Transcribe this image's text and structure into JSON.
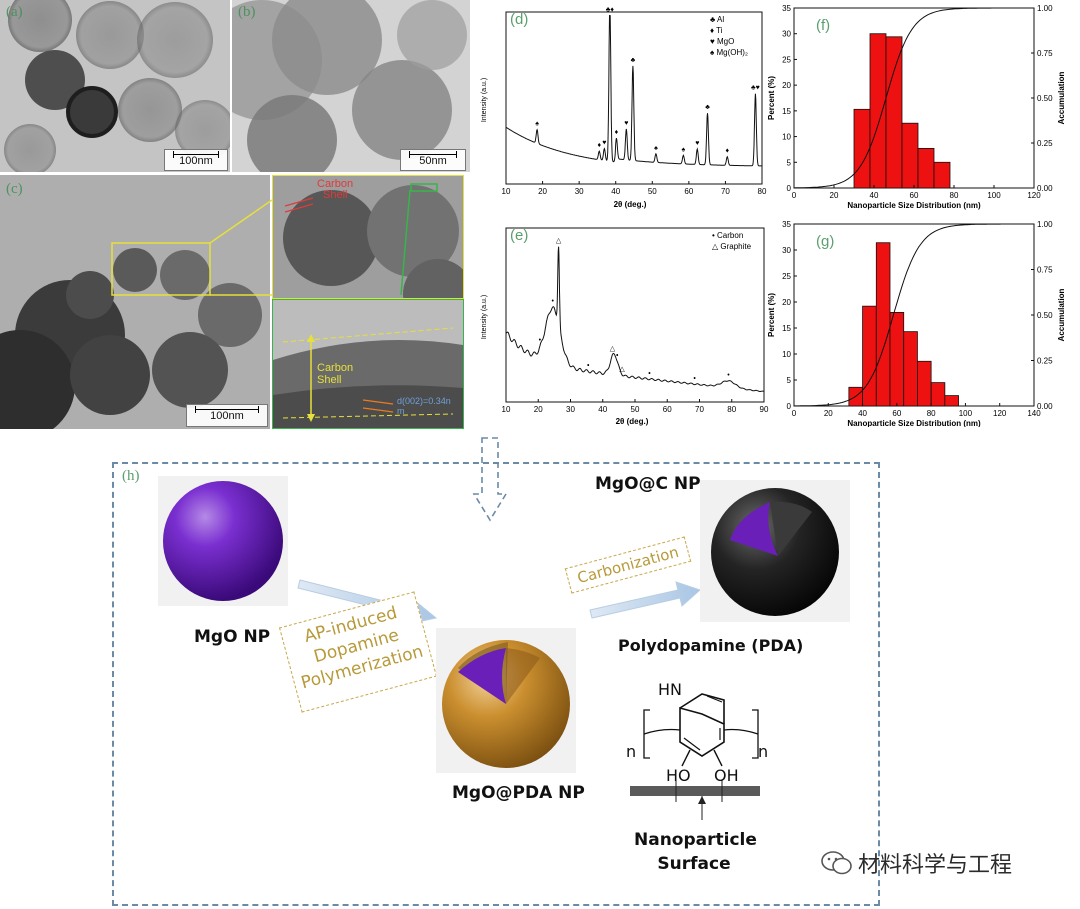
{
  "panels": {
    "a": {
      "label": "(a)",
      "scale": "100nm"
    },
    "b": {
      "label": "(b)",
      "scale": "50nm"
    },
    "c": {
      "label": "(c)",
      "scale": "100nm",
      "inset_text1": "Carbon",
      "inset_text2": "Shell",
      "carbon_label": "Carbon",
      "carbon_label2": "Shell",
      "dspacing": "d(002)=0.34n",
      "dspacing_unit": "m"
    },
    "d": {
      "label": "(d)"
    },
    "e": {
      "label": "(e)"
    },
    "f": {
      "label": "(f)"
    },
    "g": {
      "label": "(g)"
    },
    "h": {
      "label": "(h)"
    }
  },
  "chart_data": [
    {
      "id": "d",
      "type": "line",
      "xlabel": "2θ (deg.)",
      "ylabel": "Intensity (a.u.)",
      "xlim": [
        10,
        80
      ],
      "xticks": [
        10,
        20,
        30,
        40,
        50,
        60,
        70,
        80
      ],
      "legend": [
        {
          "symbol": "♣",
          "name": "Al"
        },
        {
          "symbol": "♦",
          "name": "Ti"
        },
        {
          "symbol": "♥",
          "name": "MgO"
        },
        {
          "symbol": "♠",
          "name": "Mg(OH)₂"
        }
      ],
      "peaks": [
        {
          "x": 18.5,
          "h": 0.08,
          "m": "♠"
        },
        {
          "x": 35.5,
          "h": 0.05,
          "m": "♦"
        },
        {
          "x": 36.9,
          "h": 0.07,
          "m": "♥"
        },
        {
          "x": 38.4,
          "h": 0.92,
          "m": "♣♦"
        },
        {
          "x": 40.2,
          "h": 0.12,
          "m": "♦"
        },
        {
          "x": 42.9,
          "h": 0.18,
          "m": "♥"
        },
        {
          "x": 44.7,
          "h": 0.55,
          "m": "♣"
        },
        {
          "x": 51.0,
          "h": 0.05,
          "m": "♠"
        },
        {
          "x": 58.5,
          "h": 0.05,
          "m": "♠"
        },
        {
          "x": 62.3,
          "h": 0.09,
          "m": "♥"
        },
        {
          "x": 65.1,
          "h": 0.3,
          "m": "♣"
        },
        {
          "x": 70.5,
          "h": 0.05,
          "m": "♦"
        },
        {
          "x": 78.2,
          "h": 0.42,
          "m": "♣♥"
        }
      ]
    },
    {
      "id": "e",
      "type": "line",
      "xlabel": "2θ (deg.)",
      "ylabel": "Intensity (a.u.)",
      "xlim": [
        10,
        90
      ],
      "xticks": [
        10,
        20,
        30,
        40,
        50,
        60,
        70,
        80,
        90
      ],
      "legend": [
        {
          "symbol": "•",
          "name": "Carbon"
        },
        {
          "symbol": "△",
          "name": "Graphite"
        }
      ]
    },
    {
      "id": "f",
      "type": "bar",
      "xlabel": "Nanoparticle Size Distribution (nm)",
      "ylabel": "Percent (%)",
      "y2label": "Accumulation",
      "xlim": [
        0,
        120
      ],
      "ylim": [
        0,
        35
      ],
      "y2lim": [
        0,
        1
      ],
      "xticks": [
        0,
        20,
        40,
        60,
        80,
        100,
        120
      ],
      "yticks": [
        0,
        5,
        10,
        15,
        20,
        25,
        30,
        35
      ],
      "y2ticks": [
        "0.00",
        "0.25",
        "0.50",
        "0.75",
        "1.00"
      ],
      "bins": [
        {
          "from": 30,
          "to": 38,
          "value": 15.3
        },
        {
          "from": 38,
          "to": 46,
          "value": 30.0
        },
        {
          "from": 46,
          "to": 54,
          "value": 29.4
        },
        {
          "from": 54,
          "to": 62,
          "value": 12.6
        },
        {
          "from": 62,
          "to": 70,
          "value": 7.7
        },
        {
          "from": 70,
          "to": 78,
          "value": 5.0
        }
      ]
    },
    {
      "id": "g",
      "type": "bar",
      "xlabel": "Nanoparticle Size Distribution (nm)",
      "ylabel": "Percent (%)",
      "y2label": "Accumulation",
      "xlim": [
        0,
        140
      ],
      "ylim": [
        0,
        35
      ],
      "y2lim": [
        0,
        1
      ],
      "xticks": [
        0,
        20,
        40,
        60,
        80,
        100,
        120,
        140
      ],
      "yticks": [
        0,
        5,
        10,
        15,
        20,
        25,
        30,
        35
      ],
      "y2ticks": [
        "0.00",
        "0.25",
        "0.50",
        "0.75",
        "1.00"
      ],
      "bins": [
        {
          "from": 32,
          "to": 40,
          "value": 3.6
        },
        {
          "from": 40,
          "to": 48,
          "value": 19.2
        },
        {
          "from": 48,
          "to": 56,
          "value": 31.4
        },
        {
          "from": 56,
          "to": 64,
          "value": 18.0
        },
        {
          "from": 64,
          "to": 72,
          "value": 14.3
        },
        {
          "from": 72,
          "to": 80,
          "value": 8.6
        },
        {
          "from": 80,
          "to": 88,
          "value": 4.5
        },
        {
          "from": 88,
          "to": 96,
          "value": 2.0
        }
      ]
    }
  ],
  "scheme": {
    "mgo_np": "MgO NP",
    "mgo_pda_np": "MgO@PDA NP",
    "mgo_c_np": "MgO@C NP",
    "step1_line1": "AP-induced",
    "step1_line2": "Dopamine",
    "step1_line3": "Polymerization",
    "step2": "Carbonization",
    "pda_title": "Polydopamine (PDA)",
    "hn": "HN",
    "ho": "HO",
    "oh": "OH",
    "n_left": "n",
    "n_right": "n",
    "surface_line1": "Nanoparticle",
    "surface_line2": "Surface"
  },
  "watermark": "材料科学与工程",
  "colors": {
    "bar": "#ee1111",
    "accent_green": "#3f8f55",
    "dash_blue": "#6b8aa6",
    "note_yellow": "#c8a84a",
    "mgo_purple": "#6a1fb8",
    "pda_orange": "#c98d2c"
  }
}
